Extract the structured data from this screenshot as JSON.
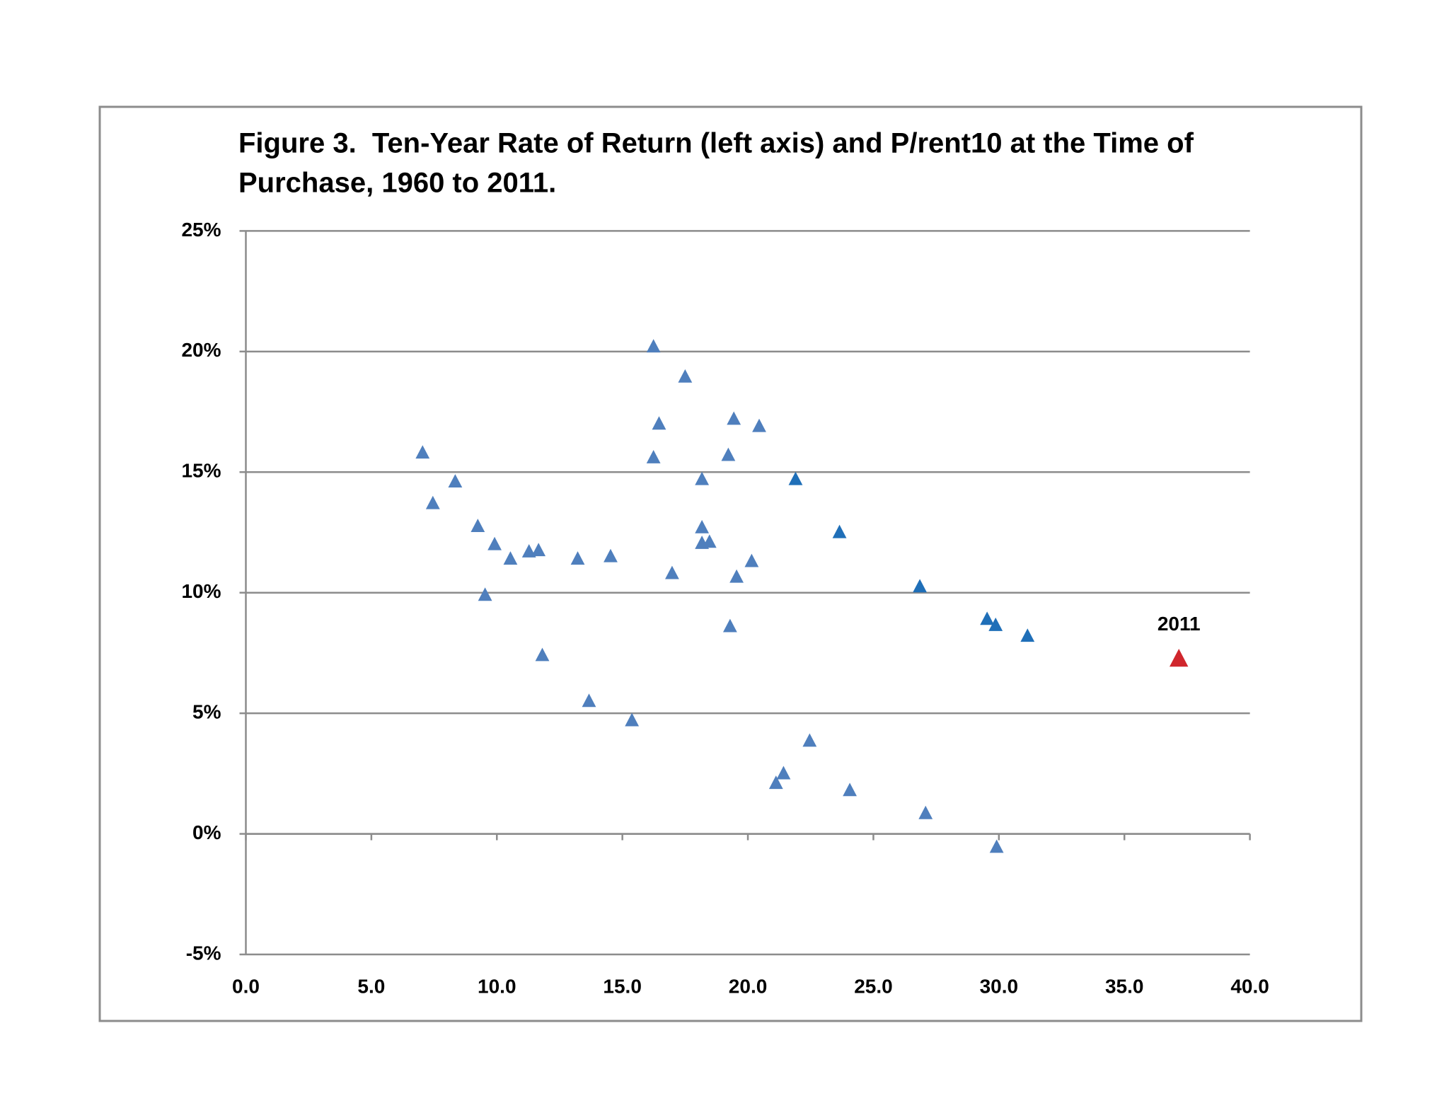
{
  "chart_data": {
    "type": "scatter",
    "title": [
      "Figure 3.  Ten-Year Rate of Return (left axis) and P/rent10 at the Time of",
      "Purchase, 1960 to 2011."
    ],
    "xlim": [
      0,
      40
    ],
    "xticks": [
      {
        "value": 0,
        "label": "0.0"
      },
      {
        "value": 5,
        "label": "5.0"
      },
      {
        "value": 10,
        "label": "10.0"
      },
      {
        "value": 15,
        "label": "15.0"
      },
      {
        "value": 20,
        "label": "20.0"
      },
      {
        "value": 25,
        "label": "25.0"
      },
      {
        "value": 30,
        "label": "30.0"
      },
      {
        "value": 35,
        "label": "35.0"
      },
      {
        "value": 40,
        "label": "40.0"
      }
    ],
    "ylim": [
      -5,
      25
    ],
    "yticks": [
      {
        "value": -5,
        "label": "-5%"
      },
      {
        "value": 0,
        "label": "0%"
      },
      {
        "value": 5,
        "label": "5%"
      },
      {
        "value": 10,
        "label": "10%"
      },
      {
        "value": 15,
        "label": "15%"
      },
      {
        "value": 20,
        "label": "20%"
      },
      {
        "value": 25,
        "label": "25%"
      }
    ],
    "grid": true,
    "series": [
      {
        "color": "#4f7fbd",
        "x": [
          7.04,
          7.45,
          8.34,
          9.24,
          9.91,
          9.53,
          10.54,
          11.28,
          11.66,
          11.81,
          13.22,
          13.67,
          14.53,
          15.38,
          16.24,
          16.24,
          16.46,
          16.98,
          17.5,
          18.17,
          18.17,
          18.17,
          18.47,
          19.22,
          19.29,
          19.44,
          19.55,
          20.15,
          20.45,
          21.12,
          21.42,
          22.46,
          24.06,
          27.08,
          29.91
        ],
        "values": [
          15.8,
          13.7,
          14.6,
          12.75,
          12.0,
          9.9,
          11.4,
          11.7,
          11.75,
          7.4,
          11.4,
          5.5,
          11.5,
          4.7,
          20.2,
          15.6,
          17.0,
          10.8,
          18.95,
          14.7,
          12.7,
          12.05,
          12.1,
          15.7,
          8.6,
          17.2,
          10.65,
          11.3,
          16.9,
          2.1,
          2.5,
          3.85,
          1.8,
          0.85,
          -0.55
        ]
      },
      {
        "color": "#1f6fb8",
        "x": [
          21.9,
          23.65,
          26.85,
          29.53,
          29.87,
          31.14
        ],
        "values": [
          14.7,
          12.5,
          10.25,
          8.9,
          8.65,
          8.2
        ]
      },
      {
        "color": "#d0262d",
        "label": "2011",
        "x": [
          37.17
        ],
        "values": [
          7.25
        ]
      }
    ]
  }
}
